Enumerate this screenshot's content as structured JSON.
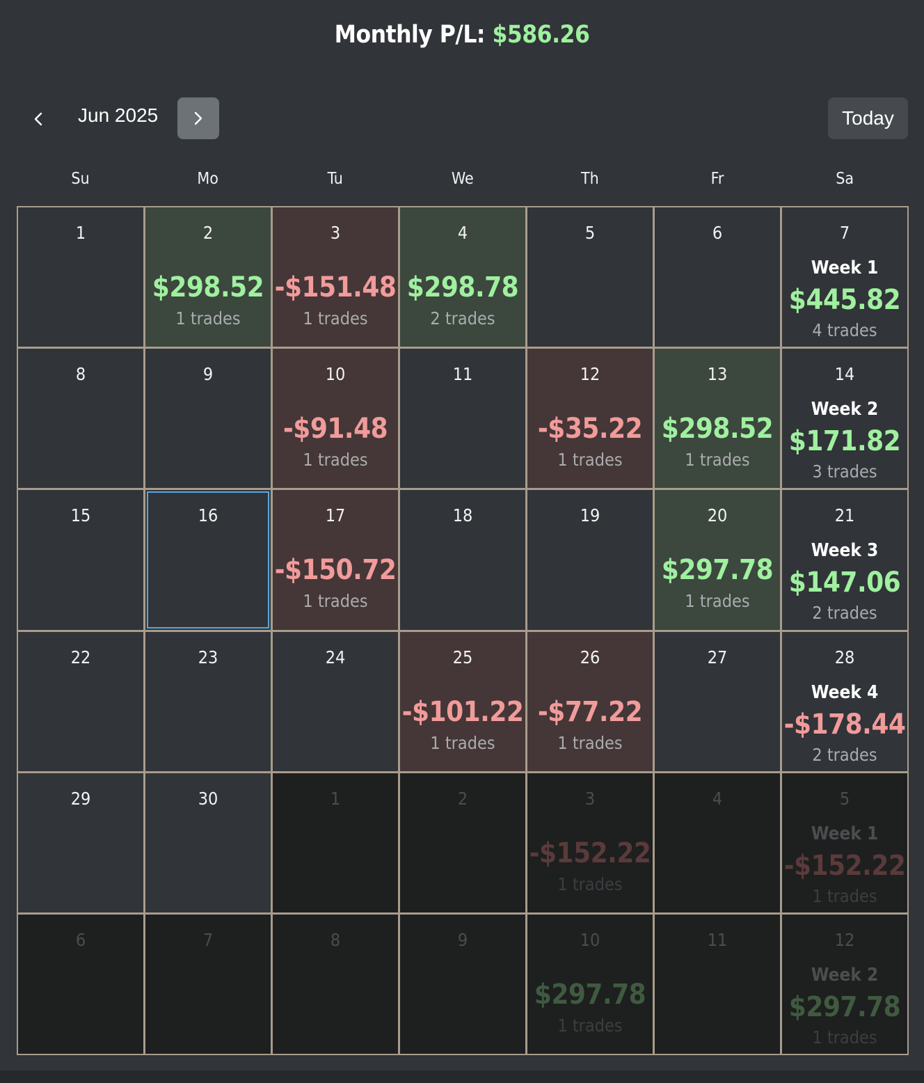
{
  "header": {
    "title_prefix": "Monthly P/L:",
    "monthly_pl": "$586.26"
  },
  "nav": {
    "month_label": "Jun 2025",
    "today_label": "Today"
  },
  "weekdays": [
    "Su",
    "Mo",
    "Tu",
    "We",
    "Th",
    "Fr",
    "Sa"
  ],
  "colors": {
    "positive": "#9ff09f",
    "negative": "#f19b9b",
    "selected_outline": "#5aa6e0"
  },
  "weeks": [
    [
      {
        "day": "1"
      },
      {
        "day": "2",
        "amount": "$298.52",
        "trades": "1 trades",
        "sign": "pos"
      },
      {
        "day": "3",
        "amount": "-$151.48",
        "trades": "1 trades",
        "sign": "neg"
      },
      {
        "day": "4",
        "amount": "$298.78",
        "trades": "2 trades",
        "sign": "pos"
      },
      {
        "day": "5"
      },
      {
        "day": "6"
      },
      {
        "day": "7",
        "week": "Week 1",
        "amount": "$445.82",
        "trades": "4 trades",
        "sign": "pos"
      }
    ],
    [
      {
        "day": "8"
      },
      {
        "day": "9"
      },
      {
        "day": "10",
        "amount": "-$91.48",
        "trades": "1 trades",
        "sign": "neg"
      },
      {
        "day": "11"
      },
      {
        "day": "12",
        "amount": "-$35.22",
        "trades": "1 trades",
        "sign": "neg"
      },
      {
        "day": "13",
        "amount": "$298.52",
        "trades": "1 trades",
        "sign": "pos"
      },
      {
        "day": "14",
        "week": "Week 2",
        "amount": "$171.82",
        "trades": "3 trades",
        "sign": "pos"
      }
    ],
    [
      {
        "day": "15"
      },
      {
        "day": "16",
        "selected": true
      },
      {
        "day": "17",
        "amount": "-$150.72",
        "trades": "1 trades",
        "sign": "neg"
      },
      {
        "day": "18"
      },
      {
        "day": "19"
      },
      {
        "day": "20",
        "amount": "$297.78",
        "trades": "1 trades",
        "sign": "pos"
      },
      {
        "day": "21",
        "week": "Week 3",
        "amount": "$147.06",
        "trades": "2 trades",
        "sign": "pos"
      }
    ],
    [
      {
        "day": "22"
      },
      {
        "day": "23"
      },
      {
        "day": "24"
      },
      {
        "day": "25",
        "amount": "-$101.22",
        "trades": "1 trades",
        "sign": "neg"
      },
      {
        "day": "26",
        "amount": "-$77.22",
        "trades": "1 trades",
        "sign": "neg"
      },
      {
        "day": "27"
      },
      {
        "day": "28",
        "week": "Week 4",
        "amount": "-$178.44",
        "trades": "2 trades",
        "sign": "neg"
      }
    ],
    [
      {
        "day": "29"
      },
      {
        "day": "30"
      },
      {
        "day": "1",
        "out": true
      },
      {
        "day": "2",
        "out": true
      },
      {
        "day": "3",
        "out": true,
        "amount": "-$152.22",
        "trades": "1 trades",
        "sign": "neg"
      },
      {
        "day": "4",
        "out": true
      },
      {
        "day": "5",
        "out": true,
        "week": "Week 1",
        "amount": "-$152.22",
        "trades": "1 trades",
        "sign": "neg"
      }
    ],
    [
      {
        "day": "6",
        "out": true
      },
      {
        "day": "7",
        "out": true
      },
      {
        "day": "8",
        "out": true
      },
      {
        "day": "9",
        "out": true
      },
      {
        "day": "10",
        "out": true,
        "amount": "$297.78",
        "trades": "1 trades",
        "sign": "pos"
      },
      {
        "day": "11",
        "out": true
      },
      {
        "day": "12",
        "out": true,
        "week": "Week 2",
        "amount": "$297.78",
        "trades": "1 trades",
        "sign": "pos"
      }
    ]
  ]
}
